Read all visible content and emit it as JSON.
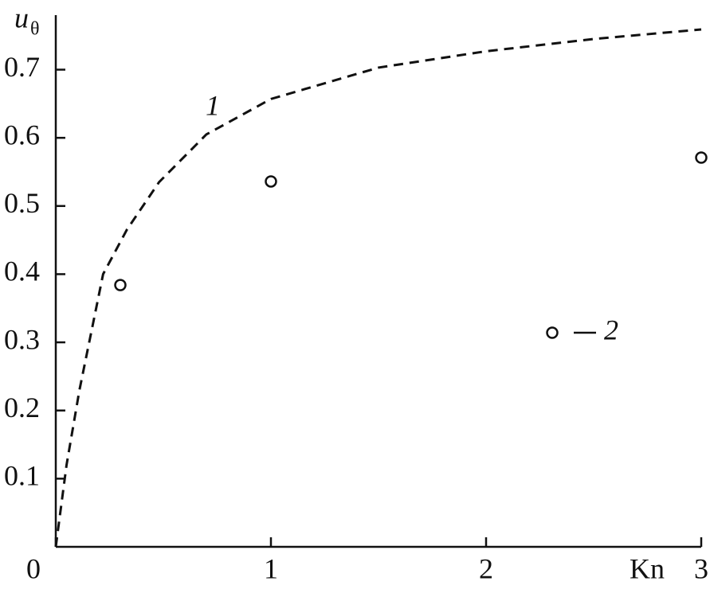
{
  "chart_data": {
    "type": "line",
    "x_label": "Kn",
    "y_label": "u",
    "y_label_sub": "θ",
    "xlim": [
      0,
      3
    ],
    "ylim": [
      0,
      0.78
    ],
    "xticks": [
      0,
      1,
      2,
      3
    ],
    "yticks": [
      0.1,
      0.2,
      0.3,
      0.4,
      0.5,
      0.6,
      0.7
    ],
    "series": [
      {
        "name": "1",
        "type": "line",
        "style": "dashed",
        "color": "#111111",
        "x": [
          0,
          0.05,
          0.11,
          0.22,
          0.33,
          0.48,
          0.7,
          1.0,
          1.5,
          2.0,
          2.5,
          3.0
        ],
        "values": [
          0,
          0.12,
          0.23,
          0.4,
          0.465,
          0.535,
          0.605,
          0.657,
          0.703,
          0.727,
          0.745,
          0.759
        ]
      },
      {
        "name": "2",
        "type": "scatter",
        "color": "#111111",
        "x": [
          0.3,
          1.0,
          3.0
        ],
        "values": [
          0.384,
          0.536,
          0.571
        ]
      }
    ]
  }
}
